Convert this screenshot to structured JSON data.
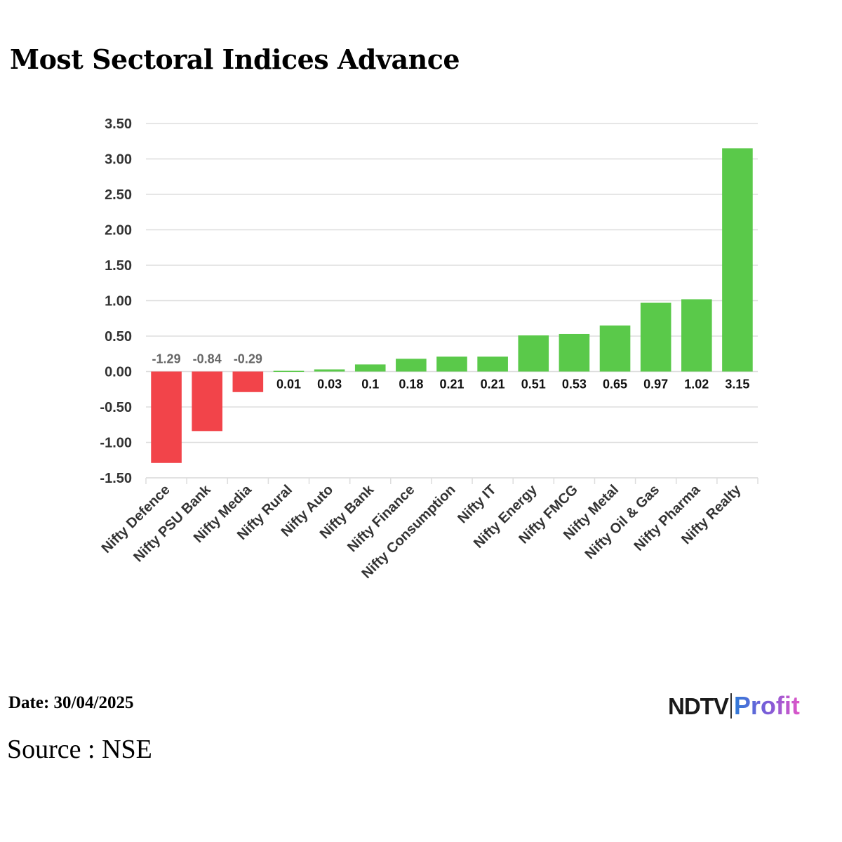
{
  "title": "Most Sectoral Indices Advance",
  "footer": {
    "date": "Date: 30/04/2025",
    "source": "Source : NSE"
  },
  "logo": {
    "brand": "NDTV",
    "product": "Profit"
  },
  "colors": {
    "positive": "#5ac94a",
    "negative": "#f2444a",
    "grid": "#dddddd",
    "axis_text": "#333333",
    "neg_label": "#666666"
  },
  "chart_data": {
    "type": "bar",
    "title": "Most Sectoral Indices Advance",
    "xlabel": "",
    "ylabel": "",
    "ylim": [
      -1.5,
      3.5
    ],
    "yticks": [
      "3.50",
      "3.00",
      "2.50",
      "2.00",
      "1.50",
      "1.00",
      "0.50",
      "0.00",
      "-0.50",
      "-1.00",
      "-1.50"
    ],
    "ytick_values": [
      3.5,
      3.0,
      2.5,
      2.0,
      1.5,
      1.0,
      0.5,
      0.0,
      -0.5,
      -1.0,
      -1.5
    ],
    "categories": [
      "Nifty Defence",
      "Nifty PSU Bank",
      "Nifty Media",
      "Nifty Rural",
      "Nifty Auto",
      "Nifty Bank",
      "Nifty Finance",
      "Nifty Consumption",
      "Nifty IT",
      "Nifty Energy",
      "Nifty FMCG",
      "Nifty Metal",
      "Nifty Oil & Gas",
      "Nifty Pharma",
      "Nifty Realty"
    ],
    "values": [
      -1.29,
      -0.84,
      -0.29,
      0.01,
      0.03,
      0.1,
      0.18,
      0.21,
      0.21,
      0.51,
      0.53,
      0.65,
      0.97,
      1.02,
      3.15
    ],
    "labels": [
      "-1.29",
      "-0.84",
      "-0.29",
      "0.01",
      "0.03",
      "0.1",
      "0.18",
      "0.21",
      "0.21",
      "0.51",
      "0.53",
      "0.65",
      "0.97",
      "1.02",
      "3.15"
    ],
    "grid": true,
    "legend": "none"
  }
}
